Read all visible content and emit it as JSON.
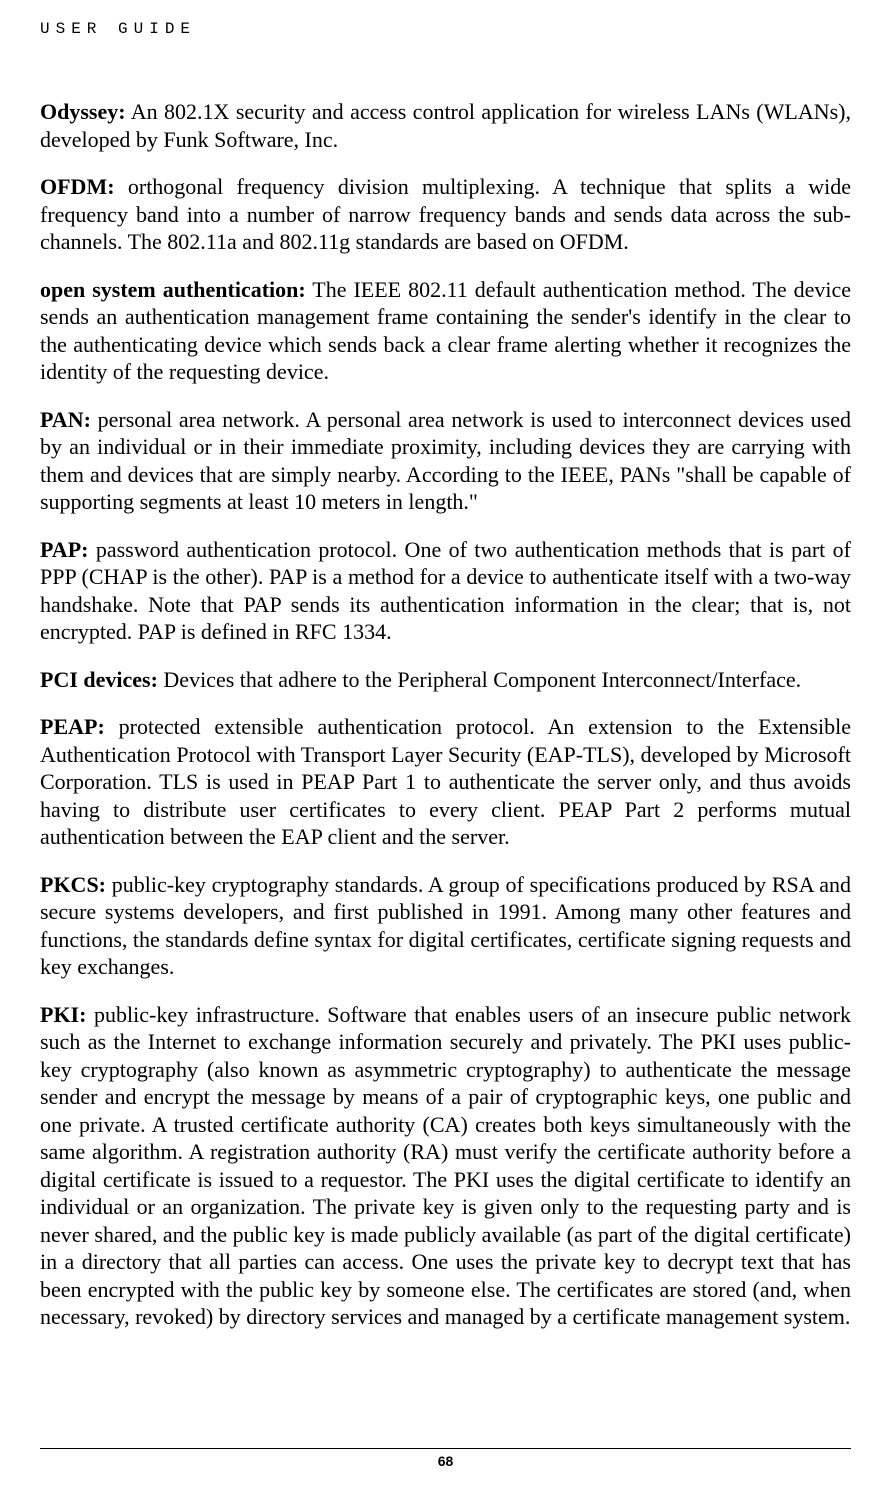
{
  "header": {
    "label": "USER GUIDE"
  },
  "entries": [
    {
      "term": "Odyssey:",
      "def": " An 802.1X security and access control application for wireless LANs (WLANs), developed by Funk Software, Inc."
    },
    {
      "term": "OFDM:",
      "def": " orthogonal frequency division multiplexing. A technique that splits a wide frequency band into a number of narrow frequency bands and sends data across the sub-channels. The 802.11a and 802.11g standards are based on OFDM."
    },
    {
      "term": "open system authentication:",
      "def": " The IEEE 802.11 default authentication method. The device sends an authentication management frame containing the sender's identify in the clear to the authenticating device which sends back a clear frame alerting whether it recognizes the identity of the requesting device."
    },
    {
      "term": "PAN:",
      "def": " personal area network. A personal area network is used to interconnect devices used by an individual or in their immediate proximity, including devices they are carrying with them and devices that are simply nearby. According to the IEEE, PANs \"shall be capable of supporting segments at least 10 meters in length.\""
    },
    {
      "term": "PAP:",
      "def": " password authentication protocol. One of two authentication methods that is part of PPP (CHAP is the other). PAP is a method for a device to authenticate itself with a two-way handshake. Note that PAP sends its authentication information in the clear; that is, not encrypted. PAP is defined in RFC 1334."
    },
    {
      "term": "PCI devices:",
      "def": " Devices that adhere to the Peripheral Component Interconnect/Interface."
    },
    {
      "term": "PEAP:",
      "def": " protected extensible authentication protocol. An extension to the Extensible Authentication Protocol with Transport Layer Security (EAP-TLS), developed by Microsoft Corporation. TLS is used in PEAP Part 1 to authenticate the server only, and thus avoids having to distribute user certificates to every client. PEAP Part 2 performs mutual authentication between the EAP client and the server."
    },
    {
      "term": "PKCS:",
      "def": " public-key cryptography standards. A group of specifications produced by RSA and secure systems developers, and first published in 1991. Among many other features and functions, the standards define syntax for digital certificates, certificate signing requests and key exchanges."
    },
    {
      "term": "PKI:",
      "def": " public-key infrastructure. Software that enables users of an insecure public network such as the Internet to exchange information securely and privately. The PKI uses public-key cryptography (also known as asymmetric cryptography) to authenticate the message sender and encrypt the message by means of a pair of cryptographic keys, one public and one private. A trusted certificate authority (CA) creates both keys simultaneously with the same algorithm. A registration authority (RA) must verify the certificate authority before a digital certificate is issued to a requestor. The PKI uses the digital certificate to identify an individual or an organization. The private key is given only to the requesting party and is never shared, and the public key is made publicly available (as part of the digital certificate) in a directory that all parties can access. One uses the private key to decrypt text that has been encrypted with the public key by someone else. The certificates are stored (and, when necessary, revoked) by directory services and managed by a certificate management system."
    }
  ],
  "footer": {
    "page_number": "68"
  }
}
